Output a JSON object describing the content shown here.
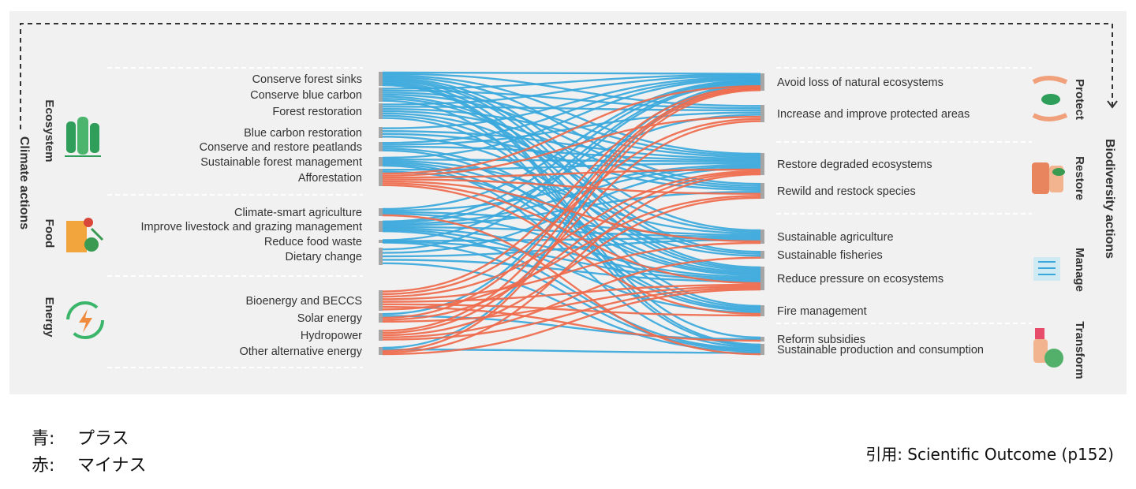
{
  "axis_titles": {
    "left": "Climate actions",
    "right": "Biodiversity actions"
  },
  "left_groups": [
    {
      "name": "Ecosystem",
      "icon": "forest-icon",
      "items": [
        "Conserve forest sinks",
        "Conserve blue carbon",
        "Forest restoration",
        "Blue carbon restoration",
        "Conserve and restore peatlands",
        "Sustainable forest management",
        "Afforestation"
      ]
    },
    {
      "name": "Food",
      "icon": "vegetable-crate-icon",
      "items": [
        "Climate-smart agriculture",
        "Improve livestock and grazing management",
        "Reduce food waste",
        "Dietary change"
      ]
    },
    {
      "name": "Energy",
      "icon": "renewable-energy-icon",
      "items": [
        "Bioenergy and BECCS",
        "Solar energy",
        "Hydropower",
        "Other alternative energy"
      ]
    }
  ],
  "right_groups": [
    {
      "name": "Protect",
      "icon": "hands-leaf-icon",
      "items": [
        "Avoid loss of natural ecosystems",
        "Increase and improve protected areas"
      ]
    },
    {
      "name": "Restore",
      "icon": "hands-sprout-icon",
      "items": [
        "Restore degraded ecosystems",
        "Rewild and restock species"
      ]
    },
    {
      "name": "Manage",
      "icon": "management-icon",
      "items": [
        "Sustainable agriculture",
        "Sustainable fisheries",
        "Reduce pressure on ecosystems",
        "Fire management"
      ]
    },
    {
      "name": "Transform",
      "icon": "transform-globe-icon",
      "items": [
        "Reform subsidies",
        "Sustainable production and consumption"
      ]
    }
  ],
  "colors": {
    "positive": "#3aa8dc",
    "negative": "#ef6a4c",
    "node": "#a5a5a5"
  },
  "links": [
    [
      0,
      0,
      "p"
    ],
    [
      0,
      1,
      "p"
    ],
    [
      0,
      2,
      "p"
    ],
    [
      0,
      3,
      "p"
    ],
    [
      0,
      4,
      "p"
    ],
    [
      0,
      5,
      "p"
    ],
    [
      0,
      6,
      "p"
    ],
    [
      0,
      7,
      "p"
    ],
    [
      0,
      8,
      "p"
    ],
    [
      0,
      9,
      "p"
    ],
    [
      1,
      0,
      "p"
    ],
    [
      1,
      1,
      "p"
    ],
    [
      1,
      2,
      "p"
    ],
    [
      1,
      3,
      "p"
    ],
    [
      1,
      5,
      "p"
    ],
    [
      1,
      6,
      "p"
    ],
    [
      1,
      9,
      "p"
    ],
    [
      2,
      0,
      "p"
    ],
    [
      2,
      1,
      "p"
    ],
    [
      2,
      2,
      "p"
    ],
    [
      2,
      3,
      "p"
    ],
    [
      2,
      4,
      "p"
    ],
    [
      2,
      6,
      "p"
    ],
    [
      2,
      7,
      "p"
    ],
    [
      3,
      0,
      "p"
    ],
    [
      3,
      2,
      "p"
    ],
    [
      3,
      3,
      "p"
    ],
    [
      3,
      5,
      "p"
    ],
    [
      4,
      0,
      "p"
    ],
    [
      4,
      1,
      "p"
    ],
    [
      4,
      2,
      "p"
    ],
    [
      4,
      6,
      "p"
    ],
    [
      4,
      7,
      "p"
    ],
    [
      5,
      0,
      "p"
    ],
    [
      5,
      2,
      "p"
    ],
    [
      5,
      4,
      "p"
    ],
    [
      5,
      6,
      "p"
    ],
    [
      5,
      7,
      "p"
    ],
    [
      5,
      9,
      "p"
    ],
    [
      6,
      0,
      "n"
    ],
    [
      6,
      1,
      "n"
    ],
    [
      6,
      2,
      "n"
    ],
    [
      6,
      3,
      "n"
    ],
    [
      6,
      4,
      "n"
    ],
    [
      6,
      6,
      "n"
    ],
    [
      6,
      7,
      "n"
    ],
    [
      6,
      2,
      "p"
    ],
    [
      6,
      6,
      "p"
    ],
    [
      7,
      0,
      "p"
    ],
    [
      7,
      2,
      "p"
    ],
    [
      7,
      4,
      "p"
    ],
    [
      7,
      6,
      "p"
    ],
    [
      7,
      9,
      "n"
    ],
    [
      8,
      0,
      "p"
    ],
    [
      8,
      1,
      "p"
    ],
    [
      8,
      2,
      "p"
    ],
    [
      8,
      3,
      "p"
    ],
    [
      8,
      4,
      "p"
    ],
    [
      8,
      6,
      "p"
    ],
    [
      8,
      7,
      "p"
    ],
    [
      8,
      9,
      "p"
    ],
    [
      9,
      0,
      "p"
    ],
    [
      9,
      4,
      "p"
    ],
    [
      9,
      6,
      "p"
    ],
    [
      9,
      9,
      "p"
    ],
    [
      10,
      0,
      "p"
    ],
    [
      10,
      2,
      "p"
    ],
    [
      10,
      4,
      "p"
    ],
    [
      10,
      6,
      "p"
    ],
    [
      10,
      9,
      "p"
    ],
    [
      11,
      0,
      "n"
    ],
    [
      11,
      1,
      "n"
    ],
    [
      11,
      2,
      "n"
    ],
    [
      11,
      4,
      "n"
    ],
    [
      11,
      6,
      "n"
    ],
    [
      11,
      7,
      "n"
    ],
    [
      11,
      8,
      "n"
    ],
    [
      11,
      3,
      "n"
    ],
    [
      12,
      0,
      "n"
    ],
    [
      12,
      2,
      "n"
    ],
    [
      12,
      6,
      "n"
    ],
    [
      12,
      0,
      "p"
    ],
    [
      12,
      8,
      "p"
    ],
    [
      13,
      0,
      "n"
    ],
    [
      13,
      1,
      "n"
    ],
    [
      13,
      3,
      "n"
    ],
    [
      13,
      5,
      "n"
    ],
    [
      13,
      6,
      "n"
    ],
    [
      14,
      0,
      "n"
    ],
    [
      14,
      2,
      "n"
    ],
    [
      14,
      6,
      "n"
    ],
    [
      14,
      0,
      "p"
    ],
    [
      14,
      9,
      "p"
    ]
  ],
  "legend": [
    {
      "key": "青:",
      "label": "プラス"
    },
    {
      "key": "赤:",
      "label": "マイナス"
    }
  ],
  "citation": "引用: Scientific Outcome (p152)"
}
